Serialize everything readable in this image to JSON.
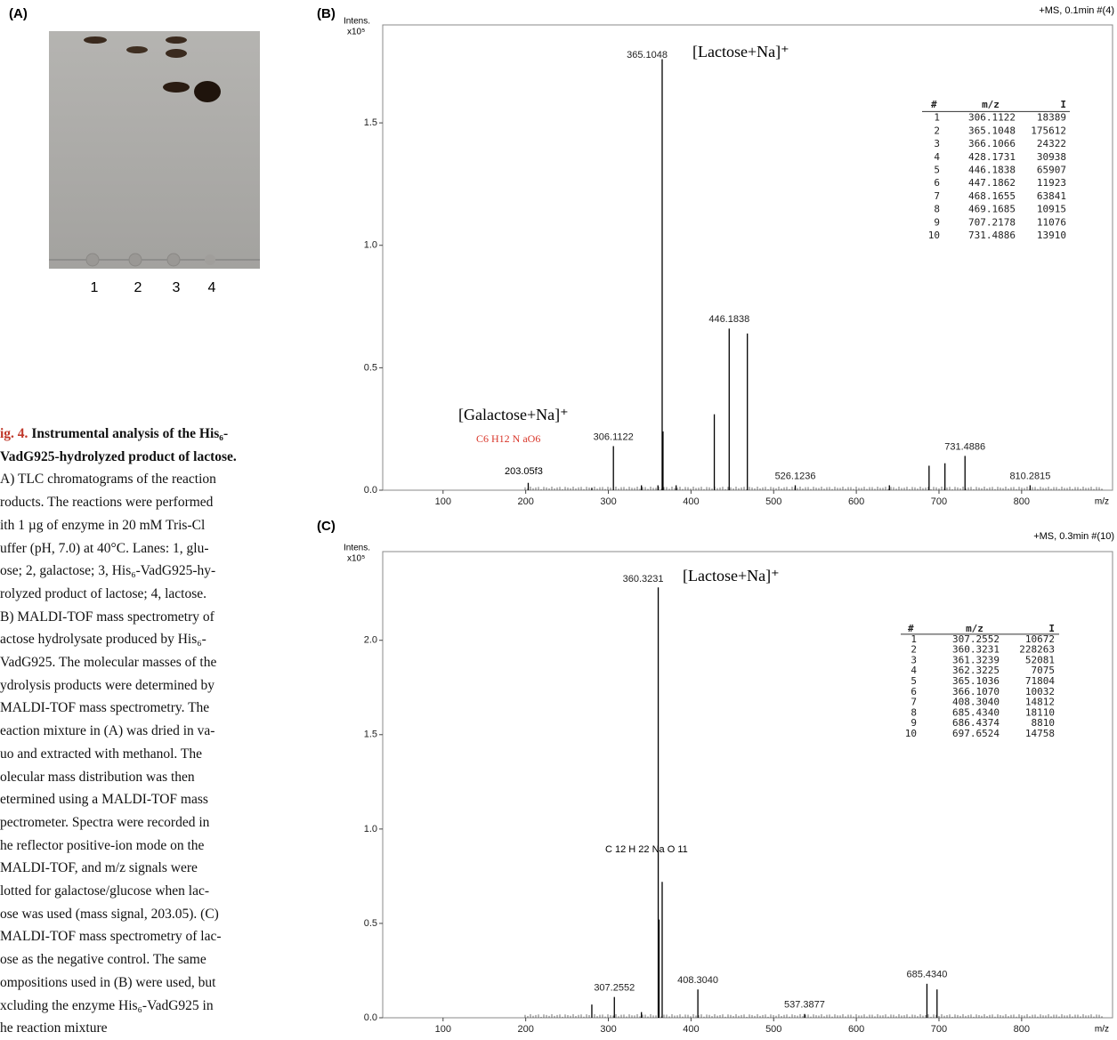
{
  "panel_labels": [
    "(A)",
    "(B)",
    "(C)"
  ],
  "tlc": {
    "lanes": [
      "1",
      "2",
      "3",
      "4"
    ]
  },
  "caption": {
    "label": "ig. 4.",
    "lines": [
      "Instrumental analysis of the His₆-",
      "VadG925-hydrolyzed product of lactose.",
      "A) TLC chromatograms of the reaction",
      "roducts. The reactions were performed",
      "ith 1 µg of enzyme in 20 mM Tris-Cl",
      "uffer (pH, 7.0) at 40°C. Lanes: 1, glu-",
      "ose; 2, galactose; 3, His₆-VadG925-hy-",
      "rolyzed product of lactose; 4, lactose.",
      "B) MALDI-TOF mass spectrometry of",
      "actose hydrolysate produced by His₆-",
      "VadG925. The molecular masses of the",
      "ydrolysis products were determined by",
      "MALDI-TOF mass spectrometry. The",
      "eaction mixture in (A) was dried in va-",
      "uo and extracted with methanol. The",
      "olecular mass distribution was then",
      "etermined using a MALDI-TOF mass",
      "pectrometer. Spectra were recorded in",
      "he reflector positive-ion mode on the",
      "MALDI-TOF, and m/z signals were",
      "lotted for galactose/glucose when lac-",
      "ose was used (mass signal, 203.05). (C)",
      "MALDI-TOF mass spectrometry of lac-",
      "ose as the negative control. The same",
      "ompositions used in (B) were used, but",
      "xcluding the enzyme His₆-VadG925 in",
      "he reaction mixture"
    ]
  },
  "chart_data": [
    {
      "type": "stick",
      "y_label": "Intens.",
      "y_unit": "x10⁵",
      "x_label": "m/z",
      "color": "#000000",
      "xlim": [
        27,
        910
      ],
      "ylim": [
        0,
        1.9
      ],
      "xticks": [
        100,
        200,
        300,
        400,
        500,
        600,
        700,
        800
      ],
      "yticks": [
        {
          "value": 0,
          "label": "0.0"
        },
        {
          "value": 0.5,
          "label": "0.5"
        },
        {
          "value": 1,
          "label": "1.0"
        },
        {
          "value": 1.5,
          "label": "1.5"
        }
      ],
      "x": [
        203.05,
        280,
        306.1122,
        340,
        360,
        365.1048,
        366.1066,
        382,
        428.1731,
        446.1838,
        468.1655,
        526.1236,
        640,
        688,
        707.2178,
        731.4886,
        810.2815
      ],
      "values": [
        0.03,
        0.01,
        0.18,
        0.02,
        0.02,
        1.76,
        0.24,
        0.02,
        0.31,
        0.66,
        0.64,
        0.02,
        0.02,
        0.1,
        0.11,
        0.14,
        0.02
      ],
      "x_labels": [
        null,
        null,
        "306.1122",
        null,
        null,
        "365.1048",
        null,
        null,
        null,
        "446.1838",
        null,
        "526.1236",
        null,
        null,
        null,
        "731.4886",
        "810.2815"
      ],
      "annotations": [
        {
          "text": "+MS, 0.1min #(4)",
          "color": "#000000"
        },
        {
          "text": "[Lactose+Na]⁺",
          "color": "#000000"
        },
        {
          "text": "[Galactose+Na]⁺",
          "color": "#000000"
        },
        {
          "text": "C6 H12 N aO6",
          "color": "#d9372b"
        },
        {
          "text": "203.05f3",
          "color": "#000000"
        }
      ],
      "table": {
        "columns": [
          "#",
          "m/z",
          "I"
        ],
        "rows": [
          [
            "1",
            "306.1122",
            "18389"
          ],
          [
            "2",
            "365.1048",
            "175612"
          ],
          [
            "3",
            "366.1066",
            "24322"
          ],
          [
            "4",
            "428.1731",
            "30938"
          ],
          [
            "5",
            "446.1838",
            "65907"
          ],
          [
            "6",
            "447.1862",
            "11923"
          ],
          [
            "7",
            "468.1655",
            "63841"
          ],
          [
            "8",
            "469.1685",
            "10915"
          ],
          [
            "9",
            "707.2178",
            "11076"
          ],
          [
            "10",
            "731.4886",
            "13910"
          ]
        ]
      }
    },
    {
      "type": "stick",
      "y_label": "Intens.",
      "y_unit": "x10⁵",
      "x_label": "m/z",
      "color": "#000000",
      "xlim": [
        27,
        910
      ],
      "ylim": [
        0,
        2.47
      ],
      "xticks": [
        100,
        200,
        300,
        400,
        500,
        600,
        700,
        800
      ],
      "yticks": [
        {
          "value": 0,
          "label": "0.0"
        },
        {
          "value": 0.5,
          "label": "0.5"
        },
        {
          "value": 1,
          "label": "1.0"
        },
        {
          "value": 1.5,
          "label": "1.5"
        },
        {
          "value": 2,
          "label": "2.0"
        }
      ],
      "x": [
        280,
        307.2552,
        340,
        360.3231,
        361.3239,
        365.1036,
        408.304,
        537.3877,
        685.434,
        697.6524
      ],
      "values": [
        0.07,
        0.11,
        0.03,
        2.28,
        0.52,
        0.72,
        0.15,
        0.02,
        0.18,
        0.15
      ],
      "x_labels": [
        null,
        "307.2552",
        null,
        "360.3231",
        null,
        null,
        "408.3040",
        "537.3877",
        "685.4340",
        null
      ],
      "annotations": [
        {
          "text": "+MS, 0.3min #(10)",
          "color": "#000000"
        },
        {
          "text": "[Lactose+Na]⁺",
          "color": "#000000"
        },
        {
          "text": "C 12 H 22 Na O 11",
          "color": "#000000"
        }
      ],
      "table": {
        "columns": [
          "#",
          "m/z",
          "I"
        ],
        "rows": [
          [
            "1",
            "307.2552",
            "10672"
          ],
          [
            "2",
            "360.3231",
            "228263"
          ],
          [
            "3",
            "361.3239",
            "52081"
          ],
          [
            "4",
            "362.3225",
            "7075"
          ],
          [
            "5",
            "365.1036",
            "71804"
          ],
          [
            "6",
            "366.1070",
            "10032"
          ],
          [
            "7",
            "408.3040",
            "14812"
          ],
          [
            "8",
            "685.4340",
            "18110"
          ],
          [
            "9",
            "686.4374",
            "8810"
          ],
          [
            "10",
            "697.6524",
            "14758"
          ]
        ]
      }
    }
  ]
}
